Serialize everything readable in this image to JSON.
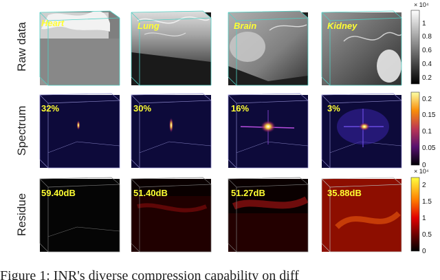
{
  "rows": [
    {
      "label": "Raw data"
    },
    {
      "label": "Spectrum"
    },
    {
      "label": "Residue"
    }
  ],
  "columns": [
    "Heart",
    "Lung",
    "Brain",
    "Kidney"
  ],
  "spectrum_values": [
    "32%",
    "30%",
    "16%",
    "3%"
  ],
  "residue_values": [
    "59.40dB",
    "51.40dB",
    "51.27dB",
    "35.88dB"
  ],
  "colorbars": {
    "raw": {
      "exponent": "× 10⁴",
      "ticks": [
        "1",
        "0.8",
        "0.6",
        "0.4",
        "0.2"
      ],
      "colors": [
        "#ffffff",
        "#000000"
      ]
    },
    "spectrum": {
      "exponent": "",
      "ticks": [
        "0.2",
        "0.15",
        "0.1",
        "0.05",
        "0"
      ],
      "colors": [
        "#fcffa4",
        "#f98e09",
        "#bc3754",
        "#57106e",
        "#000004"
      ]
    },
    "residue": {
      "exponent": "× 10⁴",
      "ticks": [
        "2",
        "1.5",
        "1",
        "0.5",
        "0"
      ],
      "colors": [
        "#ffff40",
        "#ff8000",
        "#e00000",
        "#600000",
        "#000000"
      ]
    }
  },
  "caption": "Figure 1: INR's diverse compression capability on diff"
}
